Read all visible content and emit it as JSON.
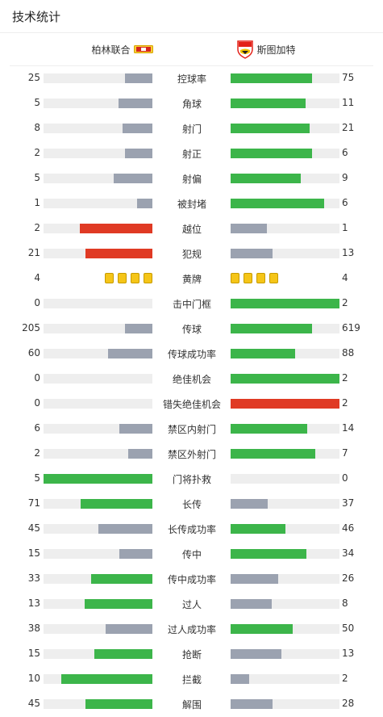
{
  "page": {
    "title": "技术统计"
  },
  "teams": {
    "home": "柏林联合",
    "away": "斯图加特"
  },
  "colors": {
    "gray": "#9ba2b0",
    "green": "#3cb54a",
    "red": "#e03a24",
    "track": "#eeeeee",
    "yellow": "#f5c518"
  },
  "stats": [
    {
      "label": "控球率",
      "home": "25",
      "away": "75",
      "home_color": "gray",
      "away_color": "green"
    },
    {
      "label": "角球",
      "home": "5",
      "away": "11",
      "home_color": "gray",
      "away_color": "green"
    },
    {
      "label": "射门",
      "home": "8",
      "away": "21",
      "home_color": "gray",
      "away_color": "green"
    },
    {
      "label": "射正",
      "home": "2",
      "away": "6",
      "home_color": "gray",
      "away_color": "green"
    },
    {
      "label": "射偏",
      "home": "5",
      "away": "9",
      "home_color": "gray",
      "away_color": "green"
    },
    {
      "label": "被封堵",
      "home": "1",
      "away": "6",
      "home_color": "gray",
      "away_color": "green"
    },
    {
      "label": "越位",
      "home": "2",
      "away": "1",
      "home_color": "red",
      "away_color": "gray"
    },
    {
      "label": "犯规",
      "home": "21",
      "away": "13",
      "home_color": "red",
      "away_color": "gray"
    },
    {
      "label": "黄牌",
      "home": "4",
      "away": "4",
      "cards": true
    },
    {
      "label": "击中门框",
      "home": "0",
      "away": "2",
      "home_color": "gray",
      "away_color": "green"
    },
    {
      "label": "传球",
      "home": "205",
      "away": "619",
      "home_color": "gray",
      "away_color": "green"
    },
    {
      "label": "传球成功率",
      "home": "60",
      "away": "88",
      "home_color": "gray",
      "away_color": "green"
    },
    {
      "label": "绝佳机会",
      "home": "0",
      "away": "2",
      "home_color": "gray",
      "away_color": "green"
    },
    {
      "label": "错失绝佳机会",
      "home": "0",
      "away": "2",
      "home_color": "gray",
      "away_color": "red"
    },
    {
      "label": "禁区内射门",
      "home": "6",
      "away": "14",
      "home_color": "gray",
      "away_color": "green"
    },
    {
      "label": "禁区外射门",
      "home": "2",
      "away": "7",
      "home_color": "gray",
      "away_color": "green"
    },
    {
      "label": "门将扑救",
      "home": "5",
      "away": "0",
      "home_color": "green",
      "away_color": "gray"
    },
    {
      "label": "长传",
      "home": "71",
      "away": "37",
      "home_color": "green",
      "away_color": "gray"
    },
    {
      "label": "长传成功率",
      "home": "45",
      "away": "46",
      "home_color": "gray",
      "away_color": "green"
    },
    {
      "label": "传中",
      "home": "15",
      "away": "34",
      "home_color": "gray",
      "away_color": "green"
    },
    {
      "label": "传中成功率",
      "home": "33",
      "away": "26",
      "home_color": "green",
      "away_color": "gray"
    },
    {
      "label": "过人",
      "home": "13",
      "away": "8",
      "home_color": "green",
      "away_color": "gray"
    },
    {
      "label": "过人成功率",
      "home": "38",
      "away": "50",
      "home_color": "gray",
      "away_color": "green"
    },
    {
      "label": "抢断",
      "home": "15",
      "away": "13",
      "home_color": "green",
      "away_color": "gray"
    },
    {
      "label": "拦截",
      "home": "10",
      "away": "2",
      "home_color": "green",
      "away_color": "gray"
    },
    {
      "label": "解围",
      "home": "45",
      "away": "28",
      "home_color": "green",
      "away_color": "gray"
    }
  ]
}
